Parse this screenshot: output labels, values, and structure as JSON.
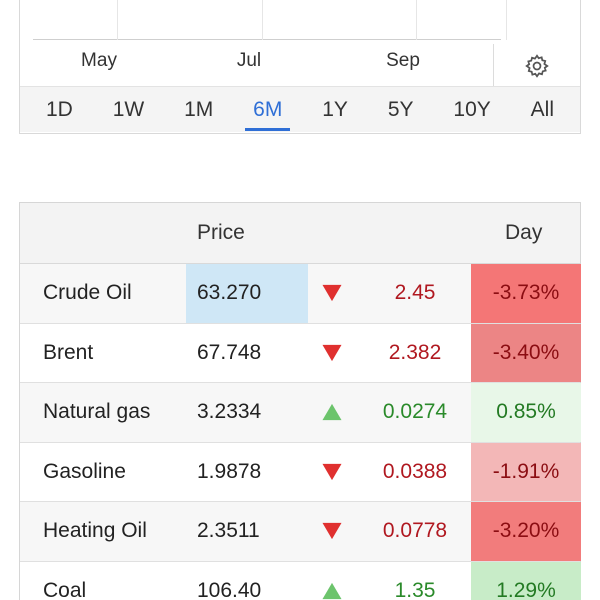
{
  "chart": {
    "x_labels": [
      "May",
      "Jul",
      "Sep"
    ],
    "settings_icon": "gear-icon"
  },
  "range_tabs": [
    {
      "label": "1D",
      "active": false
    },
    {
      "label": "1W",
      "active": false
    },
    {
      "label": "1M",
      "active": false
    },
    {
      "label": "6M",
      "active": true
    },
    {
      "label": "1Y",
      "active": false
    },
    {
      "label": "5Y",
      "active": false
    },
    {
      "label": "10Y",
      "active": false
    },
    {
      "label": "All",
      "active": false
    }
  ],
  "table": {
    "headers": {
      "price": "Price",
      "day": "Day"
    },
    "rows": [
      {
        "name": "Crude Oil",
        "price": "63.270",
        "direction": "down",
        "change": "2.45",
        "pct": "-3.73%",
        "pct_bg": "#f47676",
        "pct_color": "#8b0d12",
        "price_highlight": true
      },
      {
        "name": "Brent",
        "price": "67.748",
        "direction": "down",
        "change": "2.382",
        "pct": "-3.40%",
        "pct_bg": "#ec8585",
        "pct_color": "#8b0d12",
        "price_highlight": false
      },
      {
        "name": "Natural gas",
        "price": "3.2334",
        "direction": "up",
        "change": "0.0274",
        "pct": "0.85%",
        "pct_bg": "#e8f7e8",
        "pct_color": "#237a23",
        "price_highlight": false
      },
      {
        "name": "Gasoline",
        "price": "1.9878",
        "direction": "down",
        "change": "0.0388",
        "pct": "-1.91%",
        "pct_bg": "#f3b7b7",
        "pct_color": "#8b0d12",
        "price_highlight": false
      },
      {
        "name": "Heating Oil",
        "price": "2.3511",
        "direction": "down",
        "change": "0.0778",
        "pct": "-3.20%",
        "pct_bg": "#f27c7c",
        "pct_color": "#8b0d12",
        "price_highlight": false
      },
      {
        "name": "Coal",
        "price": "106.40",
        "direction": "up",
        "change": "1.35",
        "pct": "1.29%",
        "pct_bg": "#c8ecc8",
        "pct_color": "#237a23",
        "price_highlight": false
      }
    ]
  },
  "colors": {
    "accent": "#2f6fd6",
    "down_arrow": "#e0302f",
    "up_arrow": "#6cc46c"
  }
}
